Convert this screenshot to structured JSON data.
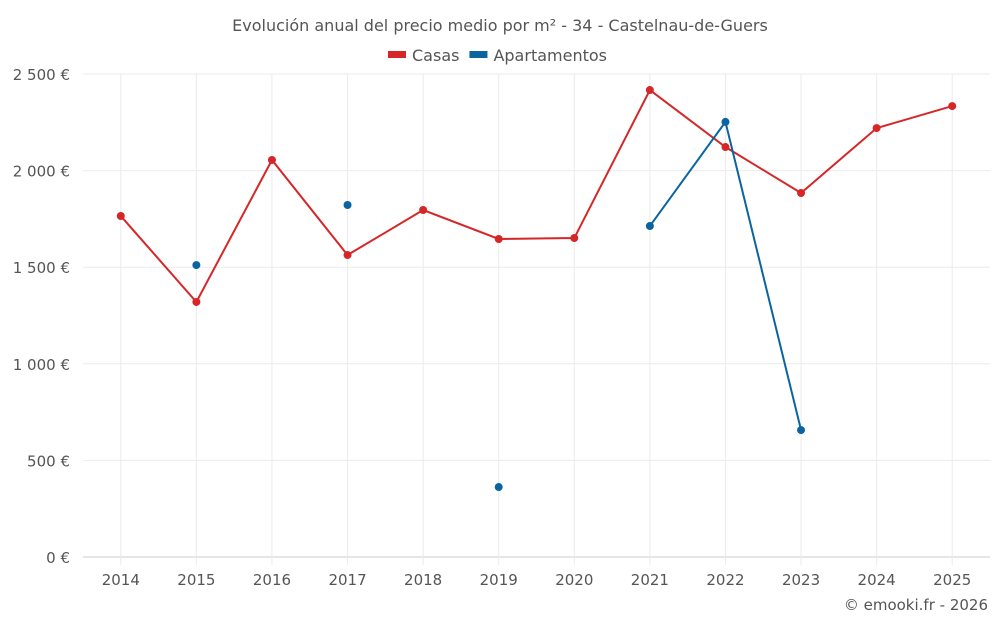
{
  "chart_data": {
    "type": "line",
    "title": "Evolución anual del precio medio por m² - 34 - Castelnau-de-Guers",
    "categories": [
      "2014",
      "2015",
      "2016",
      "2017",
      "2018",
      "2019",
      "2020",
      "2021",
      "2022",
      "2023",
      "2024",
      "2025"
    ],
    "ylim": [
      0,
      2500
    ],
    "yticks": [
      0,
      500,
      1000,
      1500,
      2000,
      2500
    ],
    "ytick_labels": [
      "0 €",
      "500 €",
      "1 000 €",
      "1 500 €",
      "2 000 €",
      "2 500 €"
    ],
    "grid": true,
    "legend_position": "top-center",
    "series": [
      {
        "name": "Casas",
        "color": "#d62728",
        "values": [
          1765,
          1320,
          2055,
          1563,
          1796,
          1646,
          1651,
          2417,
          2122,
          1884,
          2220,
          2334
        ]
      },
      {
        "name": "Apartamentos",
        "color": "#0a64a0",
        "values": [
          null,
          1511,
          null,
          1822,
          null,
          362,
          null,
          1713,
          2252,
          657,
          null,
          null
        ]
      }
    ],
    "credit": "© emooki.fr - 2026"
  }
}
